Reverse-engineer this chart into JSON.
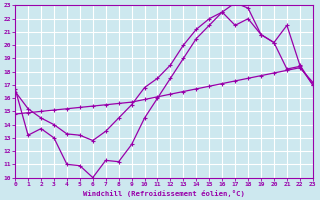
{
  "xlabel": "Windchill (Refroidissement éolien,°C)",
  "bg_color": "#cde8ef",
  "grid_color": "#ffffff",
  "line_color": "#9900aa",
  "xlim": [
    0,
    23
  ],
  "ylim": [
    10,
    23
  ],
  "xticks": [
    0,
    1,
    2,
    3,
    4,
    5,
    6,
    7,
    8,
    9,
    10,
    11,
    12,
    13,
    14,
    15,
    16,
    17,
    18,
    19,
    20,
    21,
    22,
    23
  ],
  "yticks": [
    10,
    11,
    12,
    13,
    14,
    15,
    16,
    17,
    18,
    19,
    20,
    21,
    22,
    23
  ],
  "curve1_x": [
    0,
    1,
    2,
    3,
    4,
    5,
    6,
    7,
    8,
    9,
    10,
    11,
    12,
    13,
    14,
    15,
    16,
    17,
    18,
    19,
    20,
    21,
    22,
    23
  ],
  "curve1_y": [
    16.7,
    13.2,
    13.7,
    13.0,
    11.0,
    10.9,
    10.0,
    11.3,
    11.2,
    12.5,
    14.5,
    16.0,
    17.5,
    19.0,
    20.5,
    21.5,
    22.5,
    23.2,
    22.8,
    20.8,
    20.2,
    18.2,
    18.4,
    17.0
  ],
  "curve2_x": [
    0,
    1,
    2,
    3,
    4,
    5,
    6,
    7,
    8,
    9,
    10,
    11,
    12,
    13,
    14,
    15,
    16,
    17,
    18,
    19,
    20,
    21,
    22,
    23
  ],
  "curve2_y": [
    14.8,
    14.9,
    15.0,
    15.1,
    15.2,
    15.3,
    15.4,
    15.5,
    15.6,
    15.7,
    15.9,
    16.1,
    16.3,
    16.5,
    16.7,
    16.9,
    17.1,
    17.3,
    17.5,
    17.7,
    17.9,
    18.1,
    18.3,
    17.2
  ],
  "curve3_x": [
    0,
    1,
    2,
    3,
    4,
    5,
    6,
    7,
    8,
    9,
    10,
    11,
    12,
    13,
    14,
    15,
    16,
    17,
    18,
    19,
    20,
    21,
    22,
    23
  ],
  "curve3_y": [
    16.5,
    15.2,
    14.5,
    14.0,
    13.3,
    13.2,
    12.8,
    13.5,
    14.5,
    15.5,
    16.8,
    17.5,
    18.5,
    20.0,
    21.2,
    22.0,
    22.5,
    21.5,
    22.0,
    20.8,
    20.2,
    21.5,
    18.5,
    17.0
  ]
}
